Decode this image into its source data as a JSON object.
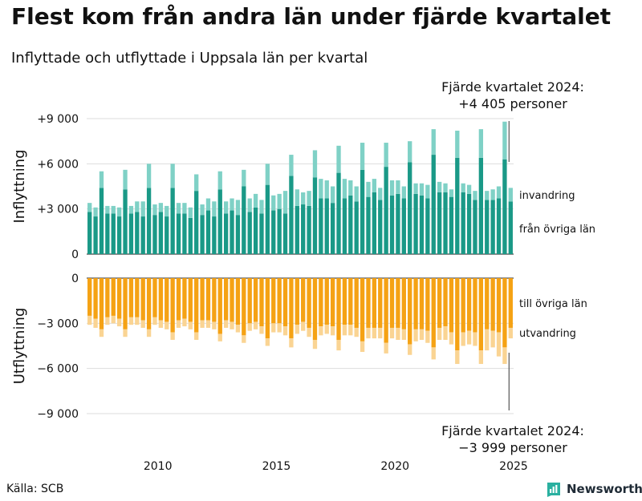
{
  "header": {
    "title": "Flest kom från andra län under fjärde kvartalet",
    "subtitle": "Inflyttade och utflyttade i Uppsala län per kvartal"
  },
  "annotations": {
    "top_line1": "Fjärde kvartalet 2024:",
    "top_line2": "+4 405 personer",
    "bottom_line1": "Fjärde kvartalet 2024:",
    "bottom_line2": "−3 999 personer"
  },
  "footer": {
    "source": "Källa: SCB",
    "brand": "Newsworthy"
  },
  "colors": {
    "domestic_in": "#1a9987",
    "immigration": "#7fd1c6",
    "domestic_out": "#f5a214",
    "emigration": "#fad493",
    "grid": "#dddddd",
    "axis": "#444444"
  },
  "chart_data": {
    "type": "bar",
    "title": "Inflyttade och utflyttade i Uppsala län per kvartal",
    "start": "2007 Q1",
    "quarters_count": 72,
    "x_tick_labels": [
      "2010",
      "2015",
      "2020",
      "2025"
    ],
    "x_tick_years": [
      2010,
      2015,
      2020,
      2025
    ],
    "upper": {
      "ylabel": "Inflyttning",
      "ylim": [
        0,
        9000
      ],
      "ticks": [
        0,
        3000,
        6000,
        9000
      ],
      "tick_labels": [
        "0",
        "+3 000",
        "+6 000",
        "+9 000"
      ],
      "series": [
        {
          "name": "från övriga län",
          "values": [
            2800,
            2500,
            4400,
            2700,
            2700,
            2500,
            4300,
            2700,
            2800,
            2500,
            4400,
            2600,
            2800,
            2500,
            4400,
            2700,
            2700,
            2400,
            4200,
            2600,
            2900,
            2500,
            4300,
            2700,
            2900,
            2600,
            4500,
            2800,
            3100,
            2700,
            4600,
            2900,
            3000,
            2700,
            5200,
            3200,
            3300,
            3200,
            5100,
            3700,
            3700,
            3400,
            5400,
            3700,
            3900,
            3500,
            5600,
            3800,
            4100,
            3600,
            5800,
            3900,
            4000,
            3700,
            6100,
            4000,
            3900,
            3700,
            6600,
            4100,
            4100,
            3800,
            6400,
            4100,
            4000,
            3600,
            6400,
            3600,
            3600,
            3700,
            6300,
            3500
          ]
        },
        {
          "name": "invandring",
          "values": [
            600,
            600,
            1100,
            500,
            500,
            600,
            1300,
            500,
            700,
            1000,
            1600,
            700,
            600,
            700,
            1600,
            700,
            700,
            700,
            1100,
            700,
            800,
            1000,
            1200,
            800,
            800,
            1000,
            1100,
            900,
            900,
            900,
            1400,
            1000,
            1000,
            1500,
            1400,
            1100,
            800,
            1000,
            1800,
            1300,
            1200,
            1100,
            1800,
            1300,
            1000,
            1000,
            1800,
            1000,
            900,
            800,
            1600,
            1000,
            900,
            800,
            1400,
            700,
            800,
            900,
            1700,
            700,
            600,
            500,
            1800,
            600,
            600,
            600,
            1900,
            600,
            700,
            800,
            2500,
            900
          ]
        }
      ]
    },
    "lower": {
      "ylabel": "Utflyttning",
      "ylim": [
        -9000,
        0
      ],
      "ticks": [
        0,
        -3000,
        -6000,
        -9000
      ],
      "tick_labels": [
        "0",
        "−3 000",
        "−6 000",
        "−9 000"
      ],
      "series": [
        {
          "name": "till övriga län",
          "values": [
            -2500,
            -2700,
            -3400,
            -2600,
            -2500,
            -2700,
            -3400,
            -2600,
            -2600,
            -2800,
            -3400,
            -2600,
            -2800,
            -2900,
            -3600,
            -2800,
            -2700,
            -2900,
            -3600,
            -2800,
            -2800,
            -2900,
            -3700,
            -2800,
            -2900,
            -3100,
            -3800,
            -3000,
            -2900,
            -3200,
            -4000,
            -3000,
            -3000,
            -3200,
            -4000,
            -3100,
            -2900,
            -3300,
            -4100,
            -3200,
            -3100,
            -3200,
            -4100,
            -3100,
            -3100,
            -3300,
            -4200,
            -3300,
            -3300,
            -3300,
            -4300,
            -3300,
            -3300,
            -3400,
            -4400,
            -3400,
            -3400,
            -3500,
            -4600,
            -3300,
            -3200,
            -3600,
            -4800,
            -3600,
            -3500,
            -3600,
            -4800,
            -3400,
            -3500,
            -3600,
            -4600,
            -3300
          ]
        },
        {
          "name": "utvandring",
          "values": [
            -600,
            -600,
            -500,
            -500,
            -500,
            -500,
            -500,
            -500,
            -500,
            -500,
            -500,
            -500,
            -500,
            -500,
            -500,
            -500,
            -500,
            -500,
            -500,
            -500,
            -500,
            -500,
            -500,
            -500,
            -500,
            -500,
            -500,
            -500,
            -500,
            -500,
            -500,
            -600,
            -600,
            -600,
            -600,
            -600,
            -600,
            -600,
            -600,
            -600,
            -600,
            -600,
            -700,
            -700,
            -700,
            -600,
            -700,
            -700,
            -700,
            -700,
            -700,
            -700,
            -800,
            -700,
            -700,
            -800,
            -700,
            -800,
            -800,
            -800,
            -900,
            -800,
            -900,
            -900,
            -900,
            -900,
            -900,
            -1400,
            -1100,
            -1600,
            -1100,
            -700
          ]
        }
      ]
    },
    "legend": [
      "invandring",
      "från övriga län",
      "till övriga län",
      "utvandring"
    ]
  }
}
